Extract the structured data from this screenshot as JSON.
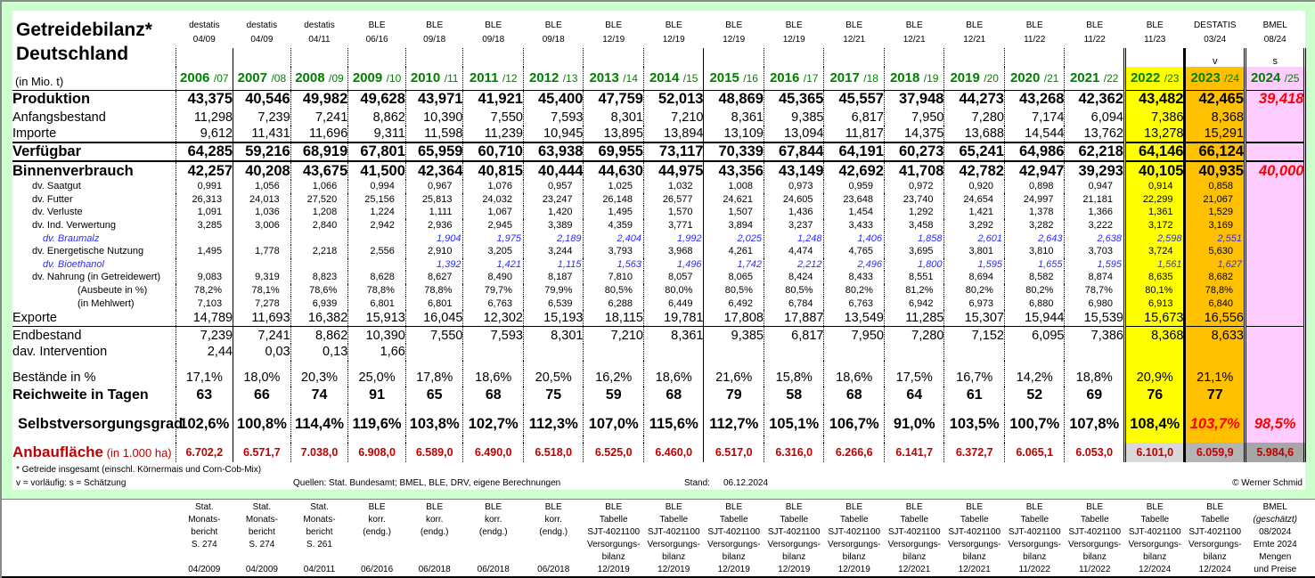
{
  "title": {
    "line1": "Getreidebilanz*",
    "line2": "Deutschland",
    "unit": "(in Mio. t)"
  },
  "columns": [
    {
      "src": "destatis",
      "date": "04/09",
      "year": "2006",
      "suffix": "/07",
      "marker": ""
    },
    {
      "src": "destatis",
      "date": "04/09",
      "year": "2007",
      "suffix": "/08",
      "marker": ""
    },
    {
      "src": "destatis",
      "date": "04/11",
      "year": "2008",
      "suffix": "/09",
      "marker": ""
    },
    {
      "src": "BLE",
      "date": "06/16",
      "year": "2009",
      "suffix": "/10",
      "marker": ""
    },
    {
      "src": "BLE",
      "date": "09/18",
      "year": "2010",
      "suffix": "/11",
      "marker": ""
    },
    {
      "src": "BLE",
      "date": "09/18",
      "year": "2011",
      "suffix": "/12",
      "marker": ""
    },
    {
      "src": "BLE",
      "date": "09/18",
      "year": "2012",
      "suffix": "/13",
      "marker": ""
    },
    {
      "src": "BLE",
      "date": "12/19",
      "year": "2013",
      "suffix": "/14",
      "marker": ""
    },
    {
      "src": "BLE",
      "date": "12/19",
      "year": "2014",
      "suffix": "/15",
      "marker": ""
    },
    {
      "src": "BLE",
      "date": "12/19",
      "year": "2015",
      "suffix": "/16",
      "marker": ""
    },
    {
      "src": "BLE",
      "date": "12/19",
      "year": "2016",
      "suffix": "/17",
      "marker": ""
    },
    {
      "src": "BLE",
      "date": "12/21",
      "year": "2017",
      "suffix": "/18",
      "marker": ""
    },
    {
      "src": "BLE",
      "date": "12/21",
      "year": "2018",
      "suffix": "/19",
      "marker": ""
    },
    {
      "src": "BLE",
      "date": "12/21",
      "year": "2019",
      "suffix": "/20",
      "marker": ""
    },
    {
      "src": "BLE",
      "date": "11/22",
      "year": "2020",
      "suffix": "/21",
      "marker": ""
    },
    {
      "src": "BLE",
      "date": "11/22",
      "year": "2021",
      "suffix": "/22",
      "marker": ""
    },
    {
      "src": "BLE",
      "date": "11/23",
      "year": "2022",
      "suffix": "/23",
      "marker": ""
    },
    {
      "src": "DESTATIS",
      "date": "03/24",
      "year": "2023",
      "suffix": "/24",
      "marker": "v"
    },
    {
      "src": "BMEL",
      "date": "08/24",
      "year": "2024",
      "suffix": "/25",
      "marker": "s"
    }
  ],
  "rows": [
    {
      "label": "Produktion",
      "style": "big",
      "values": [
        "43,375",
        "40,546",
        "49,982",
        "49,628",
        "43,971",
        "41,921",
        "45,400",
        "47,759",
        "52,013",
        "48,869",
        "45,365",
        "45,557",
        "37,948",
        "44,273",
        "43,268",
        "42,362",
        "43,482",
        "42,465",
        "39,418"
      ],
      "red": [
        18
      ]
    },
    {
      "label": "Anfangsbestand",
      "style": "normal",
      "values": [
        "11,298",
        "7,239",
        "7,241",
        "8,862",
        "10,390",
        "7,550",
        "7,593",
        "8,301",
        "7,210",
        "8,361",
        "9,385",
        "6,817",
        "7,950",
        "7,280",
        "7,174",
        "6,094",
        "7,386",
        "8,368",
        ""
      ]
    },
    {
      "label": "Importe",
      "style": "normal",
      "line": "border-bot2",
      "values": [
        "9,612",
        "11,431",
        "11,696",
        "9,311",
        "11,598",
        "11,239",
        "10,945",
        "13,895",
        "13,894",
        "13,109",
        "13,094",
        "11,817",
        "14,375",
        "13,688",
        "14,544",
        "13,762",
        "13,278",
        "15,291",
        ""
      ]
    },
    {
      "label": "Verfügbar",
      "style": "big",
      "line": "border-bot2",
      "values": [
        "64,285",
        "59,216",
        "68,919",
        "67,801",
        "65,959",
        "60,710",
        "63,938",
        "69,955",
        "73,117",
        "70,339",
        "67,844",
        "64,191",
        "60,273",
        "65,241",
        "64,986",
        "62,218",
        "64,146",
        "66,124",
        ""
      ]
    },
    {
      "label": "Binnenverbrauch",
      "style": "big",
      "values": [
        "42,257",
        "40,208",
        "43,675",
        "41,500",
        "42,364",
        "40,815",
        "40,444",
        "44,630",
        "44,975",
        "43,356",
        "43,149",
        "42,692",
        "41,708",
        "42,782",
        "42,947",
        "39,293",
        "40,105",
        "40,935",
        "40,000"
      ],
      "red": [
        18
      ]
    },
    {
      "label": "dv. Saatgut",
      "style": "small",
      "values": [
        "0,991",
        "1,056",
        "1,066",
        "0,994",
        "0,967",
        "1,076",
        "0,957",
        "1,025",
        "1,032",
        "1,008",
        "0,973",
        "0,959",
        "0,972",
        "0,920",
        "0,898",
        "0,947",
        "0,914",
        "0,858",
        ""
      ]
    },
    {
      "label": "dv. Futter",
      "style": "small",
      "values": [
        "26,313",
        "24,013",
        "27,520",
        "25,156",
        "25,813",
        "24,032",
        "23,247",
        "26,148",
        "26,577",
        "24,621",
        "24,605",
        "23,648",
        "23,740",
        "24,654",
        "24,997",
        "21,181",
        "22,299",
        "21,067",
        ""
      ]
    },
    {
      "label": "dv. Verluste",
      "style": "small",
      "values": [
        "1,091",
        "1,036",
        "1,208",
        "1,224",
        "1,111",
        "1,067",
        "1,420",
        "1,495",
        "1,570",
        "1,507",
        "1,436",
        "1,454",
        "1,292",
        "1,421",
        "1,378",
        "1,366",
        "1,361",
        "1,529",
        ""
      ]
    },
    {
      "label": "dv. Ind. Verwertung",
      "style": "small",
      "values": [
        "3,285",
        "3,006",
        "2,840",
        "2,942",
        "2,936",
        "2,945",
        "3,389",
        "4,359",
        "3,771",
        "3,894",
        "3,237",
        "3,433",
        "3,458",
        "3,292",
        "3,282",
        "3,222",
        "3,172",
        "3,169",
        ""
      ]
    },
    {
      "label": "dv. Braumalz",
      "style": "blue",
      "values": [
        "",
        "",
        "",
        "",
        "1,904",
        "1,975",
        "2,189",
        "2,404",
        "1,992",
        "2,025",
        "1,248",
        "1,406",
        "1,858",
        "2,601",
        "2,643",
        "2,638",
        "2,598",
        "2,551",
        ""
      ]
    },
    {
      "label": "dv. Energetische Nutzung",
      "style": "small",
      "values": [
        "1,495",
        "1,778",
        "2,218",
        "2,556",
        "2,910",
        "3,205",
        "3,244",
        "3,793",
        "3,968",
        "4,261",
        "4,474",
        "4,765",
        "3,695",
        "3,801",
        "3,810",
        "3,703",
        "3,724",
        "5,630",
        ""
      ]
    },
    {
      "label": "dv. Bioethanol",
      "style": "blue",
      "values": [
        "",
        "",
        "",
        "",
        "1,392",
        "1,421",
        "1,115",
        "1,563",
        "1,496",
        "1,742",
        "2,212",
        "2,496",
        "1,800",
        "1,595",
        "1,655",
        "1,595",
        "1,561",
        "1,627",
        ""
      ]
    },
    {
      "label": "dv. Nahrung (in Getreidewert)",
      "style": "small",
      "values": [
        "9,083",
        "9,319",
        "8,823",
        "8,628",
        "8,627",
        "8,490",
        "8,187",
        "7,810",
        "8,057",
        "8,065",
        "8,424",
        "8,433",
        "8,551",
        "8,694",
        "8,582",
        "8,874",
        "8,635",
        "8,682",
        ""
      ]
    },
    {
      "label": "(Ausbeute in %)",
      "style": "small",
      "indent": true,
      "values": [
        "78,2%",
        "78,1%",
        "78,6%",
        "78,8%",
        "78,8%",
        "79,7%",
        "79,9%",
        "80,5%",
        "80,0%",
        "80,5%",
        "80,5%",
        "80,2%",
        "81,2%",
        "80,2%",
        "80,2%",
        "78,7%",
        "80,1%",
        "78,8%",
        ""
      ]
    },
    {
      "label": "(in Mehlwert)",
      "style": "small",
      "indent": true,
      "values": [
        "7,103",
        "7,278",
        "6,939",
        "6,801",
        "6,801",
        "6,763",
        "6,539",
        "6,288",
        "6,449",
        "6,492",
        "6,784",
        "6,763",
        "6,942",
        "6,973",
        "6,880",
        "6,980",
        "6,913",
        "6,840",
        ""
      ]
    },
    {
      "label": "Exporte",
      "style": "normal",
      "line": "border-bot1",
      "values": [
        "14,789",
        "11,693",
        "16,382",
        "15,913",
        "16,045",
        "12,302",
        "15,193",
        "18,115",
        "19,781",
        "17,808",
        "17,887",
        "13,549",
        "11,285",
        "15,307",
        "15,944",
        "15,539",
        "15,673",
        "16,556",
        ""
      ]
    },
    {
      "label": "Endbestand",
      "style": "normal",
      "values": [
        "7,239",
        "7,241",
        "8,862",
        "10,390",
        "7,550",
        "7,593",
        "8,301",
        "7,210",
        "8,361",
        "9,385",
        "6,817",
        "7,950",
        "7,280",
        "7,152",
        "6,095",
        "7,386",
        "8,368",
        "8,633",
        ""
      ]
    },
    {
      "label": "dav. Intervention",
      "style": "normal",
      "values": [
        "2,44",
        "0,03",
        "0,13",
        "1,66",
        "",
        "",
        "",
        "",
        "",
        "",
        "",
        "",
        "",
        "",
        "",
        "",
        "",
        "",
        ""
      ]
    },
    {
      "label": "Bestände in %",
      "style": "pct",
      "gapBefore": "gap",
      "values": [
        "17,1%",
        "18,0%",
        "20,3%",
        "25,0%",
        "17,8%",
        "18,6%",
        "20,5%",
        "16,2%",
        "18,6%",
        "21,6%",
        "15,8%",
        "18,6%",
        "17,5%",
        "16,7%",
        "14,2%",
        "18,8%",
        "20,9%",
        "21,1%",
        ""
      ]
    },
    {
      "label": "Reichweite in Tagen",
      "style": "days",
      "values": [
        "63",
        "66",
        "74",
        "91",
        "65",
        "68",
        "75",
        "59",
        "68",
        "79",
        "58",
        "68",
        "64",
        "61",
        "52",
        "69",
        "76",
        "77",
        ""
      ]
    },
    {
      "label": "Selbstversorgungsgrad",
      "style": "self",
      "gapBefore": "gap",
      "values": [
        "102,6%",
        "100,8%",
        "114,4%",
        "119,6%",
        "103,8%",
        "102,7%",
        "112,3%",
        "107,0%",
        "115,6%",
        "112,7%",
        "105,1%",
        "106,7%",
        "91,0%",
        "103,5%",
        "100,7%",
        "107,8%",
        "108,4%",
        "103,7%",
        "98,5%"
      ],
      "red": [
        17,
        18
      ]
    }
  ],
  "anbau": {
    "label": "Anbaufläche",
    "unit": " (in 1.000 ha)",
    "values": [
      "6.702,2",
      "6.571,7",
      "7.038,0",
      "6.908,0",
      "6.589,0",
      "6.490,0",
      "6.518,0",
      "6.525,0",
      "6.460,0",
      "6.517,0",
      "6.316,0",
      "6.266,6",
      "6.141,7",
      "6.372,7",
      "6.065,1",
      "6.053,0",
      "6.101,0",
      "6.059,9",
      "5.984,6"
    ]
  },
  "footnotes": {
    "note1": "* Getreide insgesamt (einschl. Körnermais und Corn-Cob-Mix)",
    "note2": "v = vorläufig: s = Schätzung",
    "sources": "Quellen: Stat. Bundesamt; BMEL, BLE, DRV, eigene Berechnungen",
    "stand_label": "Stand:",
    "stand_value": "06.12.2024",
    "copyright": "© Werner Schmid"
  },
  "sourceNotes": [
    [
      "Stat.",
      "Monats-",
      "bericht",
      "S. 274",
      "",
      "04/2009"
    ],
    [
      "Stat.",
      "Monats-",
      "bericht",
      "S. 274",
      "",
      "04/2009"
    ],
    [
      "Stat.",
      "Monats-",
      "bericht",
      "S. 261",
      "",
      "04/2011"
    ],
    [
      "BLE",
      "korr.",
      "(endg.)",
      "",
      "",
      "06/2016"
    ],
    [
      "BLE",
      "korr.",
      "(endg.)",
      "",
      "",
      "06/2018"
    ],
    [
      "BLE",
      "korr.",
      "(endg.)",
      "",
      "",
      "06/2018"
    ],
    [
      "BLE",
      "korr.",
      "(endg.)",
      "",
      "",
      "06/2018"
    ],
    [
      "BLE",
      "Tabelle",
      "SJT-4021100",
      "Versorgungs-",
      "bilanz",
      "12/2019"
    ],
    [
      "BLE",
      "Tabelle",
      "SJT-4021100",
      "Versorgungs-",
      "bilanz",
      "12/2019"
    ],
    [
      "BLE",
      "Tabelle",
      "SJT-4021100",
      "Versorgungs-",
      "bilanz",
      "12/2019"
    ],
    [
      "BLE",
      "Tabelle",
      "SJT-4021100",
      "Versorgungs-",
      "bilanz",
      "12/2019"
    ],
    [
      "BLE",
      "Tabelle",
      "SJT-4021100",
      "Versorgungs-",
      "bilanz",
      "12/2019"
    ],
    [
      "BLE",
      "Tabelle",
      "SJT-4021100",
      "Versorgungs-",
      "bilanz",
      "12/2021"
    ],
    [
      "BLE",
      "Tabelle",
      "SJT-4021100",
      "Versorgungs-",
      "bilanz",
      "12/2021"
    ],
    [
      "BLE",
      "Tabelle",
      "SJT-4021100",
      "Versorgungs-",
      "bilanz",
      "11/2022"
    ],
    [
      "BLE",
      "Tabelle",
      "SJT-4021100",
      "Versorgungs-",
      "bilanz",
      "11/2022"
    ],
    [
      "BLE",
      "Tabelle",
      "SJT-4021100",
      "Versorgungs-",
      "bilanz",
      "12/2024"
    ],
    [
      "BLE",
      "Tabelle",
      "SJT-4021100",
      "Versorgungs-",
      "bilanz",
      "12/2024"
    ],
    [
      "BMEL",
      "(geschätzt)",
      "08/2024",
      "Ernte 2024",
      "Mengen",
      "und Preise"
    ]
  ],
  "colors": {
    "year_green": "#008000",
    "col_2022": "#ffff00",
    "col_2023": "#ffc000",
    "col_2024": "#ffccff",
    "anbau_red": "#c00000",
    "highlight_red": "#ff0000",
    "sub_blue": "#2b2bff",
    "anbau_2022": "#d9d9d9",
    "anbau_2023": "#b4b4b4",
    "anbau_2024": "#a6a6a6",
    "frame_green": "#ccffcc"
  }
}
